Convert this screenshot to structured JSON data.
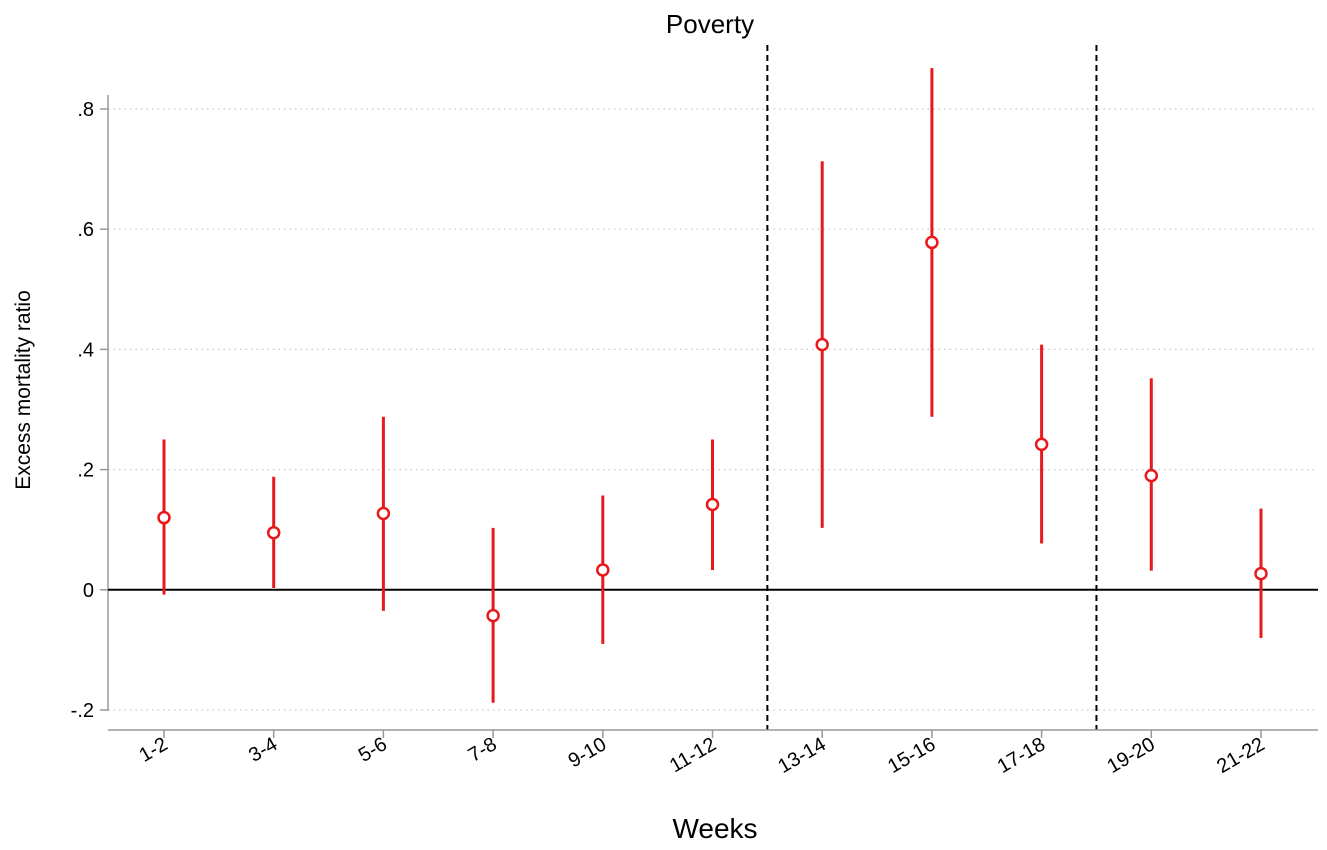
{
  "chart_data": {
    "type": "scatter",
    "title": "Poverty",
    "xlabel": "Weeks",
    "ylabel": "Excess mortality ratio",
    "ylim": [
      -0.2,
      0.8
    ],
    "yticks": [
      -0.2,
      0,
      0.2,
      0.4,
      0.6,
      0.8
    ],
    "ytick_labels": [
      "-.2",
      "0",
      ".2",
      ".4",
      ".6",
      ".8"
    ],
    "grid": "horizontal dotted",
    "reference_line_y": 0,
    "vertical_dashed_lines_between": [
      [
        "11-12",
        "13-14"
      ],
      [
        "17-18",
        "19-20"
      ]
    ],
    "categories": [
      "1-2",
      "3-4",
      "5-6",
      "7-8",
      "9-10",
      "11-12",
      "13-14",
      "15-16",
      "17-18",
      "19-20",
      "21-22"
    ],
    "series": [
      {
        "marker": "hollow circle",
        "color": "#e8191a",
        "values": [
          0.12,
          0.095,
          0.127,
          -0.043,
          0.033,
          0.142,
          0.408,
          0.578,
          0.242,
          0.19,
          0.027
        ],
        "ci_low": [
          -0.008,
          0.003,
          -0.035,
          -0.188,
          -0.09,
          0.033,
          0.103,
          0.288,
          0.077,
          0.032,
          -0.08
        ],
        "ci_high": [
          0.25,
          0.188,
          0.288,
          0.103,
          0.157,
          0.25,
          0.713,
          0.868,
          0.408,
          0.352,
          0.135
        ]
      }
    ]
  }
}
